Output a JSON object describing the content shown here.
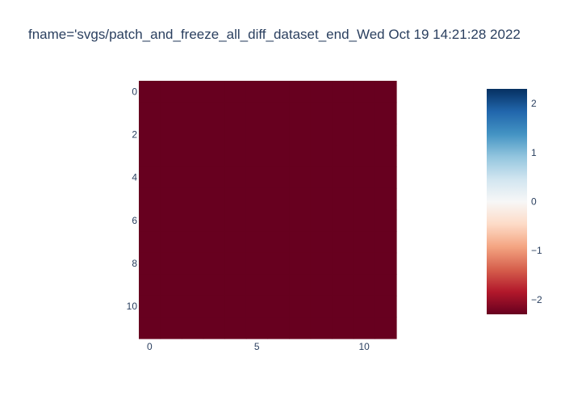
{
  "chart_data": {
    "type": "heatmap",
    "title": "fname='svgs/patch_and_freeze_all_diff_dataset_end_Wed Oct 19 14:21:28 2022",
    "rows": 12,
    "cols": 12,
    "x_range": [
      -0.5,
      11.5
    ],
    "y_range": [
      -0.5,
      11.5
    ],
    "y_reversed": true,
    "x_ticks": [
      0,
      5,
      10
    ],
    "x_tick_labels": [
      "0",
      "5",
      "10"
    ],
    "y_ticks": [
      0,
      2,
      4,
      6,
      8,
      10
    ],
    "y_tick_labels": [
      "0",
      "2",
      "4",
      "6",
      "8",
      "10"
    ],
    "z_value_all_cells": -2.3,
    "colorscale": "RdBu",
    "colorbar": {
      "range": [
        -2.3,
        2.3
      ],
      "ticks": [
        -2,
        -1,
        0,
        1,
        2
      ],
      "tick_labels": [
        "−2",
        "−1",
        "0",
        "1",
        "2"
      ]
    },
    "colors": {
      "cell": "#67001f",
      "text": "#2a3f5f"
    },
    "grid": false
  }
}
